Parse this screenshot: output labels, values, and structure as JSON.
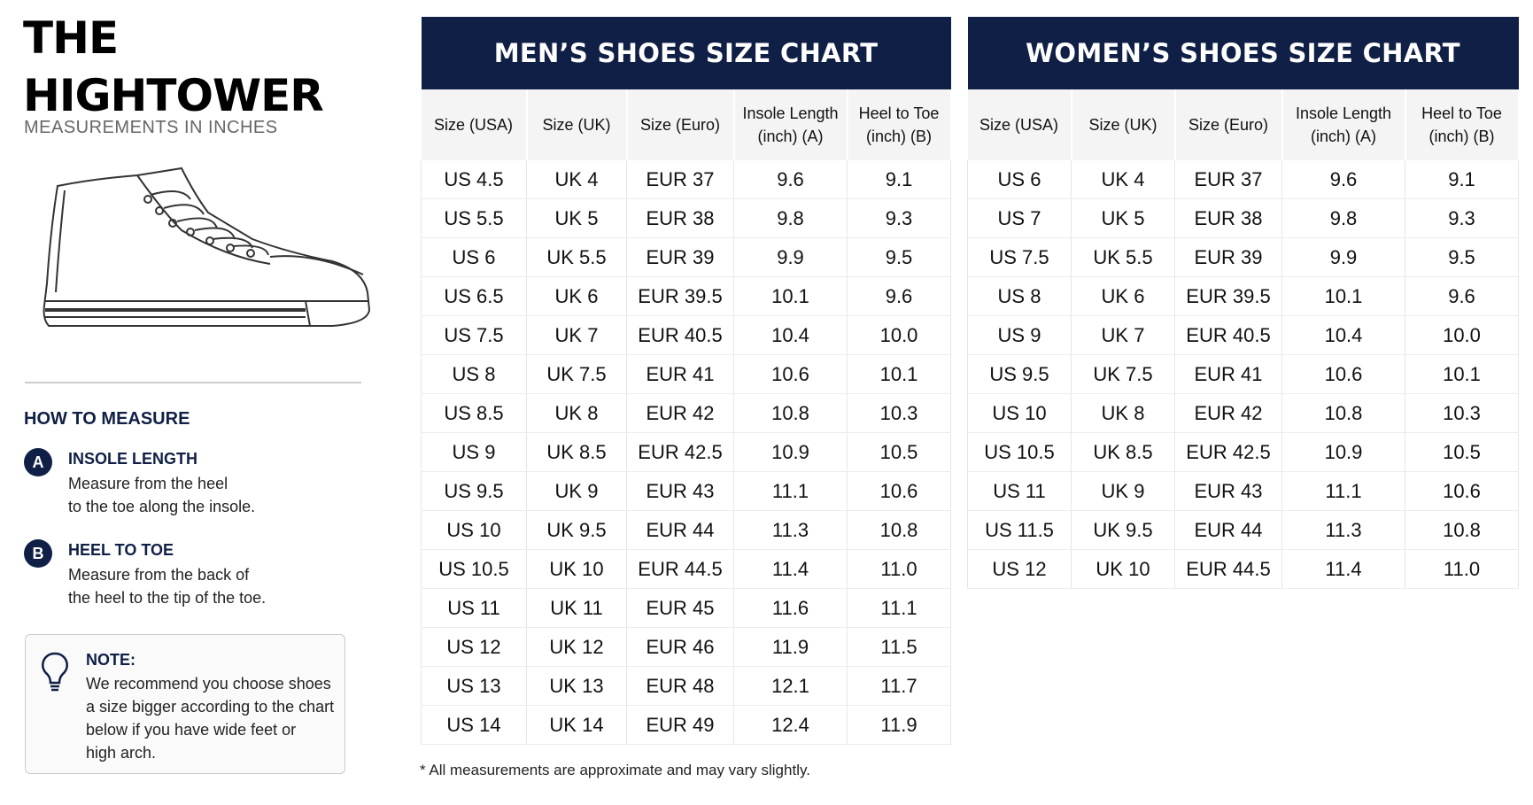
{
  "header": {
    "title_line1": "THE",
    "title_line2": "HIGHTOWER",
    "subtitle": "MEASUREMENTS IN INCHES"
  },
  "how_to_measure": {
    "heading": "HOW TO MEASURE",
    "steps": [
      {
        "badge": "A",
        "title": "INSOLE LENGTH",
        "lines": [
          "Measure from the heel",
          "to the toe along the insole."
        ]
      },
      {
        "badge": "B",
        "title": "HEEL TO TOE",
        "lines": [
          "Measure from the back of",
          "the heel to the tip of the toe."
        ]
      }
    ]
  },
  "note": {
    "title": "NOTE:",
    "lines": [
      "We recommend you choose shoes",
      "a size bigger according to the chart",
      "below if you have wide feet or",
      "high arch."
    ]
  },
  "tables": [
    {
      "title": "MEN’S SHOES SIZE CHART",
      "columns": [
        "Size (USA)",
        "Size (UK)",
        "Size (Euro)",
        "Insole Length (inch) (A)",
        "Heel to Toe (inch) (B)"
      ],
      "rows": [
        [
          "US 4.5",
          "UK 4",
          "EUR 37",
          "9.6",
          "9.1"
        ],
        [
          "US 5.5",
          "UK 5",
          "EUR 38",
          "9.8",
          "9.3"
        ],
        [
          "US 6",
          "UK 5.5",
          "EUR 39",
          "9.9",
          "9.5"
        ],
        [
          "US 6.5",
          "UK 6",
          "EUR 39.5",
          "10.1",
          "9.6"
        ],
        [
          "US 7.5",
          "UK 7",
          "EUR 40.5",
          "10.4",
          "10.0"
        ],
        [
          "US 8",
          "UK 7.5",
          "EUR 41",
          "10.6",
          "10.1"
        ],
        [
          "US 8.5",
          "UK 8",
          "EUR 42",
          "10.8",
          "10.3"
        ],
        [
          "US 9",
          "UK 8.5",
          "EUR 42.5",
          "10.9",
          "10.5"
        ],
        [
          "US 9.5",
          "UK 9",
          "EUR 43",
          "11.1",
          "10.6"
        ],
        [
          "US 10",
          "UK 9.5",
          "EUR 44",
          "11.3",
          "10.8"
        ],
        [
          "US 10.5",
          "UK 10",
          "EUR 44.5",
          "11.4",
          "11.0"
        ],
        [
          "US 11",
          "UK 11",
          "EUR 45",
          "11.6",
          "11.1"
        ],
        [
          "US 12",
          "UK 12",
          "EUR 46",
          "11.9",
          "11.5"
        ],
        [
          "US 13",
          "UK 13",
          "EUR 48",
          "12.1",
          "11.7"
        ],
        [
          "US 14",
          "UK 14",
          "EUR 49",
          "12.4",
          "11.9"
        ]
      ]
    },
    {
      "title": "WOMEN’S SHOES SIZE CHART",
      "columns": [
        "Size (USA)",
        "Size (UK)",
        "Size (Euro)",
        "Insole Length (inch) (A)",
        "Heel to Toe (inch) (B)"
      ],
      "rows": [
        [
          "US 6",
          "UK 4",
          "EUR 37",
          "9.6",
          "9.1"
        ],
        [
          "US 7",
          "UK 5",
          "EUR 38",
          "9.8",
          "9.3"
        ],
        [
          "US 7.5",
          "UK 5.5",
          "EUR 39",
          "9.9",
          "9.5"
        ],
        [
          "US 8",
          "UK 6",
          "EUR 39.5",
          "10.1",
          "9.6"
        ],
        [
          "US 9",
          "UK 7",
          "EUR 40.5",
          "10.4",
          "10.0"
        ],
        [
          "US 9.5",
          "UK 7.5",
          "EUR 41",
          "10.6",
          "10.1"
        ],
        [
          "US 10",
          "UK 8",
          "EUR 42",
          "10.8",
          "10.3"
        ],
        [
          "US 10.5",
          "UK 8.5",
          "EUR 42.5",
          "10.9",
          "10.5"
        ],
        [
          "US 11",
          "UK 9",
          "EUR 43",
          "11.1",
          "10.6"
        ],
        [
          "US 11.5",
          "UK 9.5",
          "EUR 44",
          "11.3",
          "10.8"
        ],
        [
          "US 12",
          "UK 10",
          "EUR 44.5",
          "11.4",
          "11.0"
        ]
      ]
    }
  ],
  "footnote": "* All measurements are approximate and may vary slightly."
}
